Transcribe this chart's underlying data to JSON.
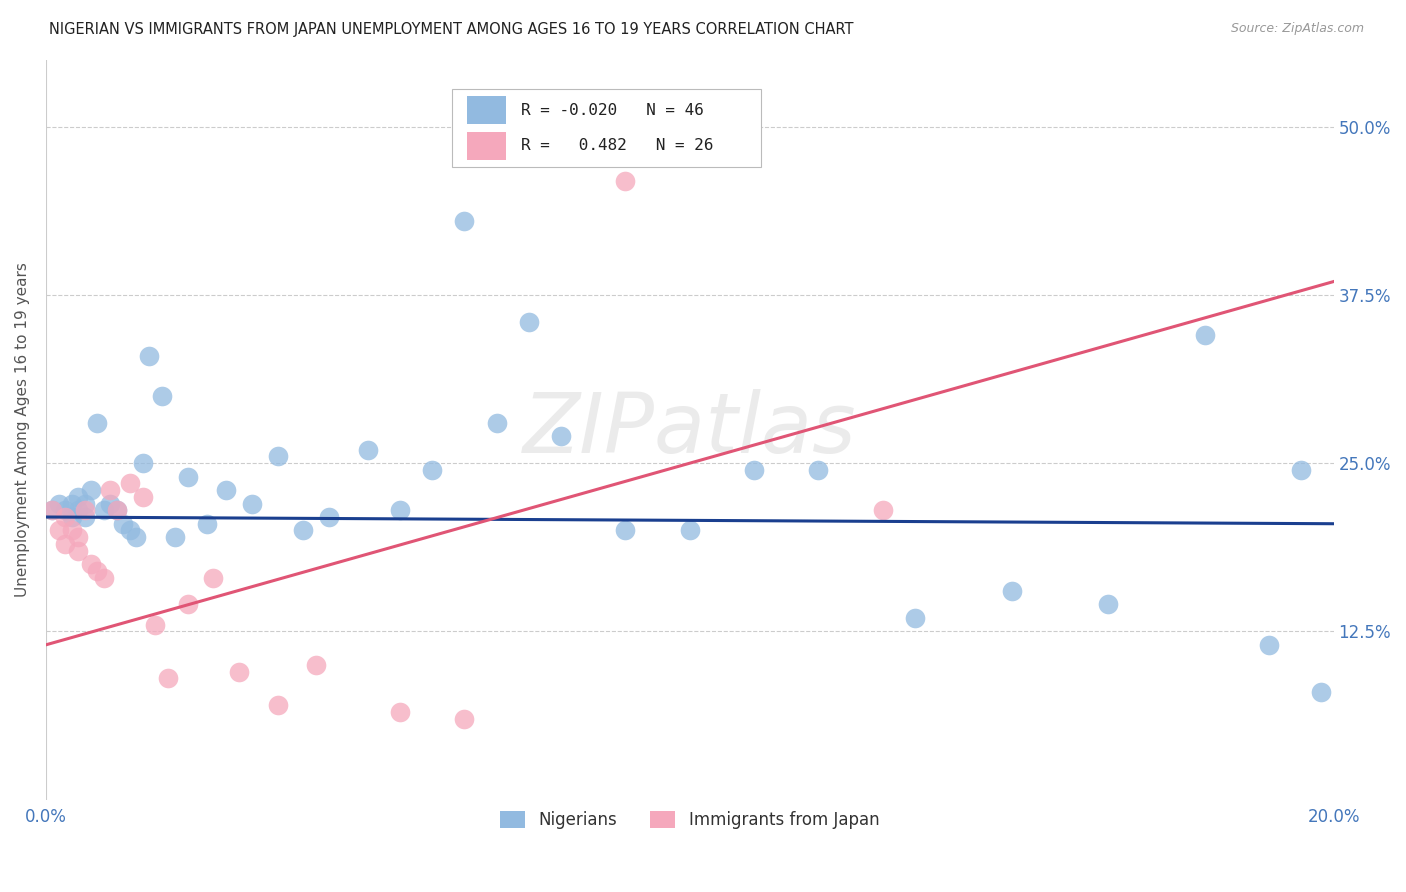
{
  "title": "NIGERIAN VS IMMIGRANTS FROM JAPAN UNEMPLOYMENT AMONG AGES 16 TO 19 YEARS CORRELATION CHART",
  "source": "Source: ZipAtlas.com",
  "ylabel": "Unemployment Among Ages 16 to 19 years",
  "ytick_labels": [
    "12.5%",
    "25.0%",
    "37.5%",
    "50.0%"
  ],
  "ytick_values": [
    0.125,
    0.25,
    0.375,
    0.5
  ],
  "legend_label1": "Nigerians",
  "legend_label2": "Immigrants from Japan",
  "R1": "-0.020",
  "N1": "46",
  "R2": "0.482",
  "N2": "26",
  "blue_color": "#92BAE0",
  "pink_color": "#F5A8BC",
  "line_blue": "#1A3F8F",
  "line_pink": "#E05575",
  "watermark": "ZIPatlas",
  "blue_scatter_x": [
    0.001,
    0.002,
    0.003,
    0.004,
    0.004,
    0.005,
    0.005,
    0.006,
    0.006,
    0.007,
    0.008,
    0.009,
    0.01,
    0.011,
    0.012,
    0.013,
    0.014,
    0.015,
    0.016,
    0.018,
    0.02,
    0.022,
    0.025,
    0.028,
    0.032,
    0.036,
    0.04,
    0.044,
    0.05,
    0.055,
    0.06,
    0.065,
    0.07,
    0.075,
    0.08,
    0.09,
    0.1,
    0.11,
    0.12,
    0.135,
    0.15,
    0.165,
    0.18,
    0.19,
    0.195,
    0.198
  ],
  "blue_scatter_y": [
    0.215,
    0.22,
    0.215,
    0.21,
    0.22,
    0.215,
    0.225,
    0.22,
    0.21,
    0.23,
    0.28,
    0.215,
    0.22,
    0.215,
    0.205,
    0.2,
    0.195,
    0.25,
    0.33,
    0.3,
    0.195,
    0.24,
    0.205,
    0.23,
    0.22,
    0.255,
    0.2,
    0.21,
    0.26,
    0.215,
    0.245,
    0.43,
    0.28,
    0.355,
    0.27,
    0.2,
    0.2,
    0.245,
    0.245,
    0.135,
    0.155,
    0.145,
    0.345,
    0.115,
    0.245,
    0.08
  ],
  "pink_scatter_x": [
    0.001,
    0.002,
    0.003,
    0.003,
    0.004,
    0.005,
    0.005,
    0.006,
    0.007,
    0.008,
    0.009,
    0.01,
    0.011,
    0.013,
    0.015,
    0.017,
    0.019,
    0.022,
    0.026,
    0.03,
    0.036,
    0.042,
    0.055,
    0.065,
    0.09,
    0.13
  ],
  "pink_scatter_y": [
    0.215,
    0.2,
    0.19,
    0.21,
    0.2,
    0.195,
    0.185,
    0.215,
    0.175,
    0.17,
    0.165,
    0.23,
    0.215,
    0.235,
    0.225,
    0.13,
    0.09,
    0.145,
    0.165,
    0.095,
    0.07,
    0.1,
    0.065,
    0.06,
    0.46,
    0.215
  ],
  "xlim": [
    0.0,
    0.2
  ],
  "ylim": [
    0.0,
    0.55
  ],
  "blue_line_x0": 0.0,
  "blue_line_x1": 0.2,
  "blue_line_y0": 0.21,
  "blue_line_y1": 0.205,
  "pink_line_x0": 0.0,
  "pink_line_x1": 0.2,
  "pink_line_y0": 0.115,
  "pink_line_y1": 0.385
}
